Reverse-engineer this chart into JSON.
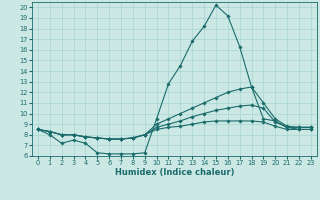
{
  "xlabel": "Humidex (Indice chaleur)",
  "bg_color": "#cce8e5",
  "line_color": "#1a6b6b",
  "grid_color": "#a8d4d0",
  "xlim": [
    -0.5,
    23.5
  ],
  "ylim": [
    6,
    20.5
  ],
  "xticks": [
    0,
    1,
    2,
    3,
    4,
    5,
    6,
    7,
    8,
    9,
    10,
    11,
    12,
    13,
    14,
    15,
    16,
    17,
    18,
    19,
    20,
    21,
    22,
    23
  ],
  "yticks": [
    6,
    7,
    8,
    9,
    10,
    11,
    12,
    13,
    14,
    15,
    16,
    17,
    18,
    19,
    20
  ],
  "lines": [
    {
      "x": [
        0,
        1,
        2,
        3,
        4,
        5,
        6,
        7,
        8,
        9,
        10,
        11,
        12,
        13,
        14,
        15,
        16,
        17,
        18,
        19,
        20,
        21,
        22,
        23
      ],
      "y": [
        8.5,
        8.0,
        7.2,
        7.5,
        7.2,
        6.3,
        6.2,
        6.2,
        6.2,
        6.3,
        9.5,
        12.8,
        14.5,
        16.8,
        18.2,
        20.2,
        19.2,
        16.3,
        12.5,
        9.5,
        9.3,
        8.7,
        8.7,
        8.7
      ]
    },
    {
      "x": [
        0,
        1,
        2,
        3,
        4,
        5,
        6,
        7,
        8,
        9,
        10,
        11,
        12,
        13,
        14,
        15,
        16,
        17,
        18,
        19,
        20,
        21,
        22,
        23
      ],
      "y": [
        8.5,
        8.3,
        8.0,
        8.0,
        7.8,
        7.7,
        7.6,
        7.6,
        7.7,
        8.0,
        9.0,
        9.5,
        10.0,
        10.5,
        11.0,
        11.5,
        12.0,
        12.3,
        12.5,
        11.0,
        9.5,
        8.8,
        8.7,
        8.7
      ]
    },
    {
      "x": [
        0,
        1,
        2,
        3,
        4,
        5,
        6,
        7,
        8,
        9,
        10,
        11,
        12,
        13,
        14,
        15,
        16,
        17,
        18,
        19,
        20,
        21,
        22,
        23
      ],
      "y": [
        8.5,
        8.3,
        8.0,
        8.0,
        7.8,
        7.7,
        7.6,
        7.6,
        7.7,
        8.0,
        8.7,
        9.0,
        9.3,
        9.7,
        10.0,
        10.3,
        10.5,
        10.7,
        10.8,
        10.5,
        9.2,
        8.7,
        8.5,
        8.5
      ]
    },
    {
      "x": [
        0,
        1,
        2,
        3,
        4,
        5,
        6,
        7,
        8,
        9,
        10,
        11,
        12,
        13,
        14,
        15,
        16,
        17,
        18,
        19,
        20,
        21,
        22,
        23
      ],
      "y": [
        8.5,
        8.3,
        8.0,
        8.0,
        7.8,
        7.7,
        7.6,
        7.6,
        7.7,
        8.0,
        8.5,
        8.7,
        8.8,
        9.0,
        9.2,
        9.3,
        9.3,
        9.3,
        9.3,
        9.2,
        8.8,
        8.5,
        8.5,
        8.5
      ]
    }
  ],
  "tick_fontsize": 4.8,
  "label_fontsize": 6.0,
  "linewidth": 0.8,
  "markersize": 1.8
}
